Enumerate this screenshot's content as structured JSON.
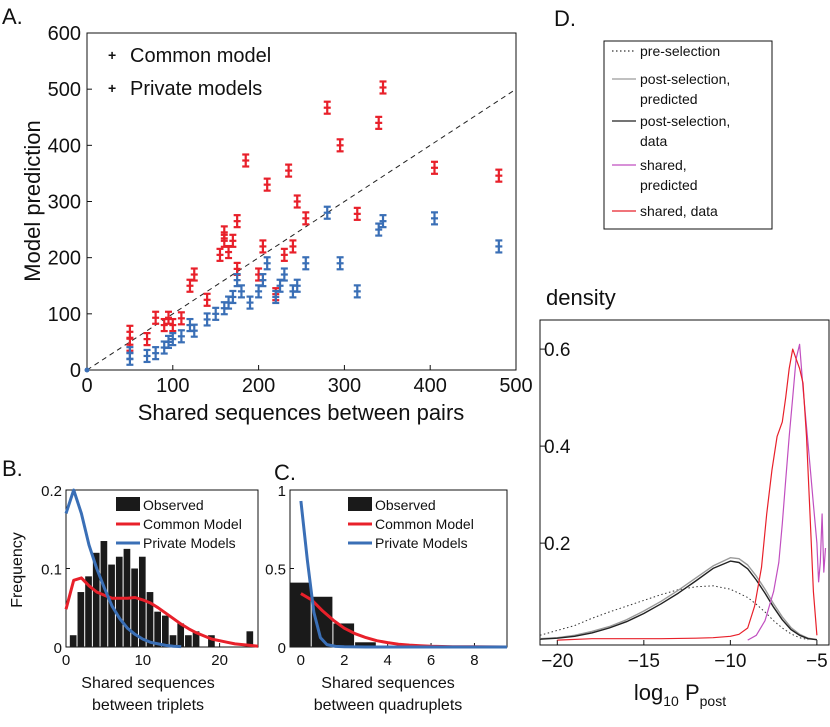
{
  "chart_data": [
    {
      "panel": "A.",
      "type": "scatter",
      "xlabel": "Shared sequences between pairs",
      "ylabel": "Model prediction",
      "xlim": [
        0,
        500
      ],
      "ylim": [
        0,
        600
      ],
      "xticks": [
        0,
        100,
        200,
        300,
        400,
        500
      ],
      "yticks": [
        0,
        100,
        200,
        300,
        400,
        500,
        600
      ],
      "reference_line": "dashed y = x",
      "series": [
        {
          "name": "Common model",
          "color": "#e8202a",
          "marker": "error-bar",
          "points": [
            [
              50,
              68
            ],
            [
              50,
              45
            ],
            [
              70,
              55
            ],
            [
              80,
              93
            ],
            [
              90,
              80
            ],
            [
              95,
              93
            ],
            [
              100,
              80
            ],
            [
              110,
              92
            ],
            [
              120,
              150
            ],
            [
              125,
              170
            ],
            [
              140,
              125
            ],
            [
              155,
              205
            ],
            [
              160,
              245
            ],
            [
              160,
              230
            ],
            [
              165,
              210
            ],
            [
              170,
              230
            ],
            [
              175,
              180
            ],
            [
              175,
              265
            ],
            [
              185,
              373
            ],
            [
              200,
              170
            ],
            [
              205,
              220
            ],
            [
              210,
              330
            ],
            [
              220,
              135
            ],
            [
              230,
              205
            ],
            [
              235,
              355
            ],
            [
              240,
              220
            ],
            [
              245,
              300
            ],
            [
              255,
              270
            ],
            [
              280,
              467
            ],
            [
              295,
              400
            ],
            [
              315,
              278
            ],
            [
              340,
              440
            ],
            [
              345,
              503
            ],
            [
              405,
              360
            ],
            [
              480,
              346
            ]
          ]
        },
        {
          "name": "Private models",
          "color": "#3a6fb6",
          "marker": "error-bar",
          "points": [
            [
              50,
              20
            ],
            [
              50,
              30
            ],
            [
              70,
              25
            ],
            [
              80,
              30
            ],
            [
              90,
              40
            ],
            [
              95,
              50
            ],
            [
              100,
              55
            ],
            [
              110,
              60
            ],
            [
              120,
              80
            ],
            [
              125,
              70
            ],
            [
              140,
              90
            ],
            [
              150,
              100
            ],
            [
              160,
              110
            ],
            [
              165,
              120
            ],
            [
              170,
              130
            ],
            [
              175,
              160
            ],
            [
              180,
              140
            ],
            [
              190,
              120
            ],
            [
              200,
              140
            ],
            [
              205,
              160
            ],
            [
              210,
              190
            ],
            [
              220,
              130
            ],
            [
              225,
              150
            ],
            [
              230,
              170
            ],
            [
              240,
              140
            ],
            [
              245,
              150
            ],
            [
              255,
              190
            ],
            [
              280,
              280
            ],
            [
              295,
              190
            ],
            [
              315,
              140
            ],
            [
              340,
              250
            ],
            [
              345,
              265
            ],
            [
              405,
              270
            ],
            [
              480,
              220
            ]
          ]
        }
      ]
    },
    {
      "panel": "B.",
      "type": "bar",
      "xlabel": "Shared sequences between triplets",
      "ylabel": "Frequency",
      "xlim": [
        0,
        25
      ],
      "ylim": [
        0,
        0.2
      ],
      "xticks": [
        0,
        10,
        20
      ],
      "yticks": [
        0,
        0.1,
        0.2
      ],
      "yticklabels": [
        "0",
        "0.1",
        "0.2"
      ],
      "legend": [
        "Observed",
        "Common Model",
        "Private Models"
      ],
      "bars": {
        "name": "Observed",
        "color": "#1a1a1a",
        "x": [
          1,
          2,
          3,
          4,
          5,
          6,
          7,
          8,
          9,
          10,
          11,
          12,
          13,
          14,
          15,
          16,
          17,
          18,
          19,
          20,
          21,
          22,
          23,
          24
        ],
        "values": [
          0.015,
          0.07,
          0.09,
          0.12,
          0.135,
          0.105,
          0.115,
          0.125,
          0.1,
          0.115,
          0.07,
          0.045,
          0.04,
          0.015,
          0.03,
          0.015,
          0.02,
          0.0,
          0.015,
          0.0,
          0.0,
          0.0,
          0.0,
          0.02
        ]
      },
      "series": [
        {
          "name": "Common Model",
          "color": "#e8202a",
          "x": [
            0,
            1,
            2,
            3,
            4,
            5,
            6,
            7,
            8,
            9,
            10,
            11,
            12,
            13,
            14,
            15,
            16,
            17,
            18,
            19,
            20,
            21,
            22,
            23,
            24,
            25
          ],
          "values": [
            0.048,
            0.085,
            0.088,
            0.078,
            0.07,
            0.066,
            0.062,
            0.062,
            0.062,
            0.063,
            0.06,
            0.056,
            0.05,
            0.043,
            0.036,
            0.029,
            0.023,
            0.018,
            0.014,
            0.01,
            0.008,
            0.006,
            0.004,
            0.003,
            0.002,
            0.001
          ]
        },
        {
          "name": "Private Models",
          "color": "#3a6fb6",
          "x": [
            0,
            1,
            2,
            3,
            4,
            5,
            6,
            7,
            8,
            9,
            10,
            11,
            12,
            13,
            14,
            15
          ],
          "values": [
            0.17,
            0.2,
            0.17,
            0.13,
            0.1,
            0.075,
            0.052,
            0.036,
            0.024,
            0.016,
            0.01,
            0.006,
            0.004,
            0.002,
            0.001,
            0.0005
          ]
        }
      ]
    },
    {
      "panel": "C.",
      "type": "bar",
      "xlabel": "Shared sequences between quadruplets",
      "ylabel": "",
      "xlim": [
        -0.5,
        9.5
      ],
      "ylim": [
        0,
        1
      ],
      "xticks": [
        0,
        2,
        4,
        6,
        8
      ],
      "yticks": [
        0,
        0.5,
        1
      ],
      "yticklabels": [
        "0",
        "0.5",
        "1"
      ],
      "legend": [
        "Observed",
        "Common Model",
        "Private Models"
      ],
      "bars": {
        "name": "Observed",
        "color": "#1a1a1a",
        "x": [
          0,
          1,
          2,
          3
        ],
        "values": [
          0.41,
          0.32,
          0.15,
          0.03
        ]
      },
      "series": [
        {
          "name": "Common Model",
          "color": "#e8202a",
          "x": [
            0,
            0.5,
            1,
            1.5,
            2,
            2.5,
            3,
            3.5,
            4,
            4.5,
            5,
            5.5,
            6,
            7,
            8,
            9.5
          ],
          "values": [
            0.34,
            0.3,
            0.23,
            0.17,
            0.12,
            0.085,
            0.06,
            0.04,
            0.028,
            0.018,
            0.012,
            0.008,
            0.005,
            0.002,
            0.001,
            0.0
          ]
        },
        {
          "name": "Private Models",
          "color": "#3a6fb6",
          "x": [
            0,
            0.3,
            0.6,
            0.9,
            1.2,
            1.6,
            2.0,
            3.0,
            5.0,
            9.5
          ],
          "values": [
            0.93,
            0.55,
            0.22,
            0.06,
            0.015,
            0.004,
            0.001,
            0.0,
            0.0,
            0.0
          ]
        }
      ]
    },
    {
      "panel": "D.",
      "type": "line",
      "title": "density",
      "xlabel": "log",
      "xlabel_sub": "10",
      "xlabel_suffix": " P",
      "xlabel_suffix_sub": "post",
      "xlim": [
        -21,
        -4.3
      ],
      "ylim": [
        -0.01,
        0.66
      ],
      "xticks": [
        -20,
        -15,
        -10,
        -5
      ],
      "xticklabels": [
        "−20",
        "−15",
        "−10",
        "−5"
      ],
      "yticks": [
        0.2,
        0.4,
        0.6
      ],
      "yticklabels": [
        "0.2",
        "0.4",
        "0.6"
      ],
      "legend": [
        {
          "label": "pre-selection",
          "color": "#333333",
          "style": "dotted"
        },
        {
          "label": "post-selection, predicted",
          "color": "#9a9a9a",
          "style": "solid"
        },
        {
          "label": "post-selection, data",
          "color": "#222222",
          "style": "solid"
        },
        {
          "label": "shared, predicted",
          "color": "#c14fc0",
          "style": "solid"
        },
        {
          "label": "shared, data",
          "color": "#e8202a",
          "style": "solid"
        }
      ],
      "series": [
        {
          "name": "pre-selection",
          "x": [
            -21,
            -20,
            -19,
            -18,
            -17,
            -16,
            -15,
            -14,
            -13,
            -12,
            -11,
            -10,
            -9,
            -8.5,
            -8,
            -7.5,
            -7,
            -6.5,
            -6,
            -5.5
          ],
          "values": [
            0.01,
            0.02,
            0.03,
            0.045,
            0.058,
            0.07,
            0.082,
            0.094,
            0.104,
            0.11,
            0.112,
            0.105,
            0.088,
            0.074,
            0.058,
            0.04,
            0.025,
            0.013,
            0.005,
            0.001
          ]
        },
        {
          "name": "post-selection, predicted",
          "x": [
            -21,
            -20,
            -19,
            -18,
            -17,
            -16,
            -15,
            -14,
            -13,
            -12,
            -11,
            -10,
            -9.5,
            -9,
            -8.5,
            -8,
            -7.5,
            -7,
            -6.5,
            -6,
            -5.5,
            -5
          ],
          "values": [
            0.003,
            0.005,
            0.01,
            0.018,
            0.028,
            0.042,
            0.06,
            0.08,
            0.103,
            0.128,
            0.153,
            0.17,
            0.168,
            0.155,
            0.132,
            0.105,
            0.075,
            0.048,
            0.026,
            0.012,
            0.004,
            0.001
          ]
        },
        {
          "name": "post-selection, data",
          "x": [
            -21,
            -20,
            -19,
            -18,
            -17,
            -16,
            -15,
            -14,
            -13,
            -12,
            -11,
            -10,
            -9.5,
            -9,
            -8.5,
            -8,
            -7.5,
            -7,
            -6.5,
            -6,
            -5.5,
            -5
          ],
          "values": [
            0.002,
            0.004,
            0.008,
            0.015,
            0.025,
            0.038,
            0.055,
            0.075,
            0.097,
            0.122,
            0.148,
            0.163,
            0.16,
            0.147,
            0.124,
            0.097,
            0.068,
            0.042,
            0.022,
            0.01,
            0.003,
            0.001
          ]
        },
        {
          "name": "shared, predicted",
          "x": [
            -9,
            -8.5,
            -8,
            -7.5,
            -7.2,
            -7,
            -6.8,
            -6.6,
            -6.4,
            -6.2,
            -6,
            -5.8,
            -5.6,
            -5.4,
            -5.2,
            -5,
            -4.9,
            -4.8,
            -4.7,
            -4.6,
            -4.5
          ],
          "values": [
            0.0,
            0.01,
            0.04,
            0.1,
            0.16,
            0.24,
            0.33,
            0.42,
            0.5,
            0.58,
            0.61,
            0.52,
            0.44,
            0.36,
            0.28,
            0.2,
            0.12,
            0.16,
            0.26,
            0.14,
            0.19
          ]
        },
        {
          "name": "shared, data",
          "x": [
            -20,
            -18,
            -16,
            -14,
            -12,
            -11,
            -10,
            -9.5,
            -9,
            -8.6,
            -8.2,
            -7.9,
            -7.6,
            -7.3,
            -7,
            -6.8,
            -6.6,
            -6.4,
            -6.2,
            -6,
            -5.8,
            -5.6,
            -5.4,
            -5.2,
            -5.0
          ],
          "values": [
            0.0,
            0.003,
            0.003,
            0.003,
            0.004,
            0.005,
            0.008,
            0.012,
            0.025,
            0.07,
            0.15,
            0.26,
            0.35,
            0.42,
            0.45,
            0.5,
            0.56,
            0.6,
            0.58,
            0.56,
            0.53,
            0.42,
            0.26,
            0.1,
            0.01
          ]
        }
      ]
    }
  ]
}
